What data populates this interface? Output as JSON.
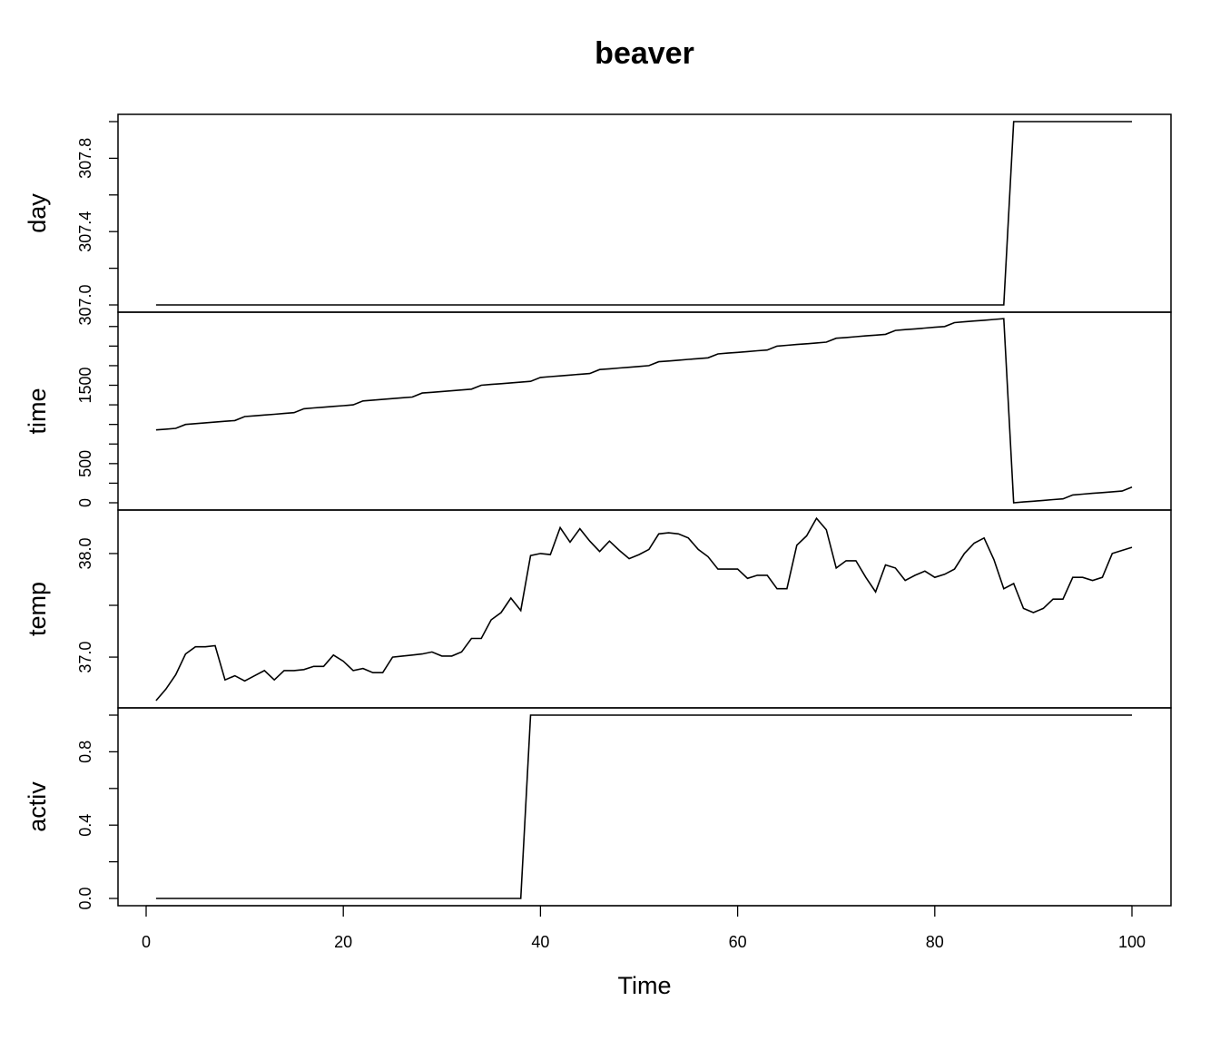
{
  "chart_data": {
    "type": "line",
    "title": "beaver",
    "xlabel": "Time",
    "xlim": [
      1,
      100
    ],
    "x_ticks": [
      "0",
      "20",
      "40",
      "60",
      "80",
      "100"
    ],
    "grid": false,
    "panels": [
      {
        "name": "day",
        "ylim": [
          307,
          308
        ],
        "y_ticks": [
          "307.0",
          "307.4",
          "307.8"
        ],
        "values": [
          307,
          307,
          307,
          307,
          307,
          307,
          307,
          307,
          307,
          307,
          307,
          307,
          307,
          307,
          307,
          307,
          307,
          307,
          307,
          307,
          307,
          307,
          307,
          307,
          307,
          307,
          307,
          307,
          307,
          307,
          307,
          307,
          307,
          307,
          307,
          307,
          307,
          307,
          307,
          307,
          307,
          307,
          307,
          307,
          307,
          307,
          307,
          307,
          307,
          307,
          307,
          307,
          307,
          307,
          307,
          307,
          307,
          307,
          307,
          307,
          307,
          307,
          307,
          307,
          307,
          307,
          307,
          307,
          307,
          307,
          307,
          307,
          307,
          307,
          307,
          307,
          307,
          307,
          307,
          307,
          307,
          307,
          307,
          307,
          307,
          307,
          307,
          308,
          308,
          308,
          308,
          308,
          308,
          308,
          308,
          308,
          308,
          308,
          308,
          308
        ]
      },
      {
        "name": "time",
        "ylim": [
          0,
          2340
        ],
        "y_ticks": [
          "0",
          "500",
          "1500"
        ],
        "values": [
          930,
          940,
          950,
          1000,
          1010,
          1020,
          1030,
          1040,
          1050,
          1100,
          1110,
          1120,
          1130,
          1140,
          1150,
          1200,
          1210,
          1220,
          1230,
          1240,
          1250,
          1300,
          1310,
          1320,
          1330,
          1340,
          1350,
          1400,
          1410,
          1420,
          1430,
          1440,
          1450,
          1500,
          1510,
          1520,
          1530,
          1540,
          1550,
          1600,
          1610,
          1620,
          1630,
          1640,
          1650,
          1700,
          1710,
          1720,
          1730,
          1740,
          1750,
          1800,
          1810,
          1820,
          1830,
          1840,
          1850,
          1900,
          1910,
          1920,
          1930,
          1940,
          1950,
          2000,
          2010,
          2020,
          2030,
          2040,
          2050,
          2100,
          2110,
          2120,
          2130,
          2140,
          2150,
          2200,
          2210,
          2220,
          2230,
          2240,
          2250,
          2300,
          2310,
          2320,
          2330,
          2340,
          2350,
          0,
          10,
          20,
          30,
          40,
          50,
          100,
          110,
          120,
          130,
          140,
          150,
          200
        ]
      },
      {
        "name": "temp",
        "ylim": [
          36.58,
          38.35
        ],
        "y_ticks": [
          "37.0",
          "38.0"
        ],
        "values": [
          36.58,
          36.69,
          36.83,
          37.03,
          37.1,
          37.1,
          37.11,
          36.78,
          36.82,
          36.77,
          36.82,
          36.87,
          36.78,
          36.87,
          36.87,
          36.88,
          36.91,
          36.91,
          37.02,
          36.96,
          36.87,
          36.89,
          36.85,
          36.85,
          37.0,
          37.01,
          37.02,
          37.03,
          37.05,
          37.01,
          37.01,
          37.05,
          37.18,
          37.18,
          37.36,
          37.43,
          37.57,
          37.45,
          37.98,
          38.0,
          37.99,
          38.25,
          38.11,
          38.24,
          38.12,
          38.02,
          38.12,
          38.03,
          37.95,
          37.99,
          38.04,
          38.19,
          38.2,
          38.19,
          38.15,
          38.04,
          37.97,
          37.85,
          37.85,
          37.85,
          37.76,
          37.79,
          37.79,
          37.66,
          37.66,
          38.08,
          38.17,
          38.34,
          38.23,
          37.86,
          37.93,
          37.93,
          37.77,
          37.63,
          37.89,
          37.86,
          37.74,
          37.79,
          37.83,
          37.77,
          37.8,
          37.85,
          38.0,
          38.1,
          38.15,
          37.94,
          37.66,
          37.71,
          37.47,
          37.43,
          37.47,
          37.56,
          37.56,
          37.77,
          37.77,
          37.74,
          37.77,
          38.0,
          38.03,
          38.06
        ]
      },
      {
        "name": "activ",
        "ylim": [
          0,
          1
        ],
        "y_ticks": [
          "0.0",
          "0.4",
          "0.8"
        ],
        "values": [
          0,
          0,
          0,
          0,
          0,
          0,
          0,
          0,
          0,
          0,
          0,
          0,
          0,
          0,
          0,
          0,
          0,
          0,
          0,
          0,
          0,
          0,
          0,
          0,
          0,
          0,
          0,
          0,
          0,
          0,
          0,
          0,
          0,
          0,
          0,
          0,
          0,
          0,
          1,
          1,
          1,
          1,
          1,
          1,
          1,
          1,
          1,
          1,
          1,
          1,
          1,
          1,
          1,
          1,
          1,
          1,
          1,
          1,
          1,
          1,
          1,
          1,
          1,
          1,
          1,
          1,
          1,
          1,
          1,
          1,
          1,
          1,
          1,
          1,
          1,
          1,
          1,
          1,
          1,
          1,
          1,
          1,
          1,
          1,
          1,
          1,
          1,
          1,
          1,
          1,
          1,
          1,
          1,
          1,
          1,
          1,
          1,
          1,
          1,
          1
        ]
      }
    ]
  }
}
